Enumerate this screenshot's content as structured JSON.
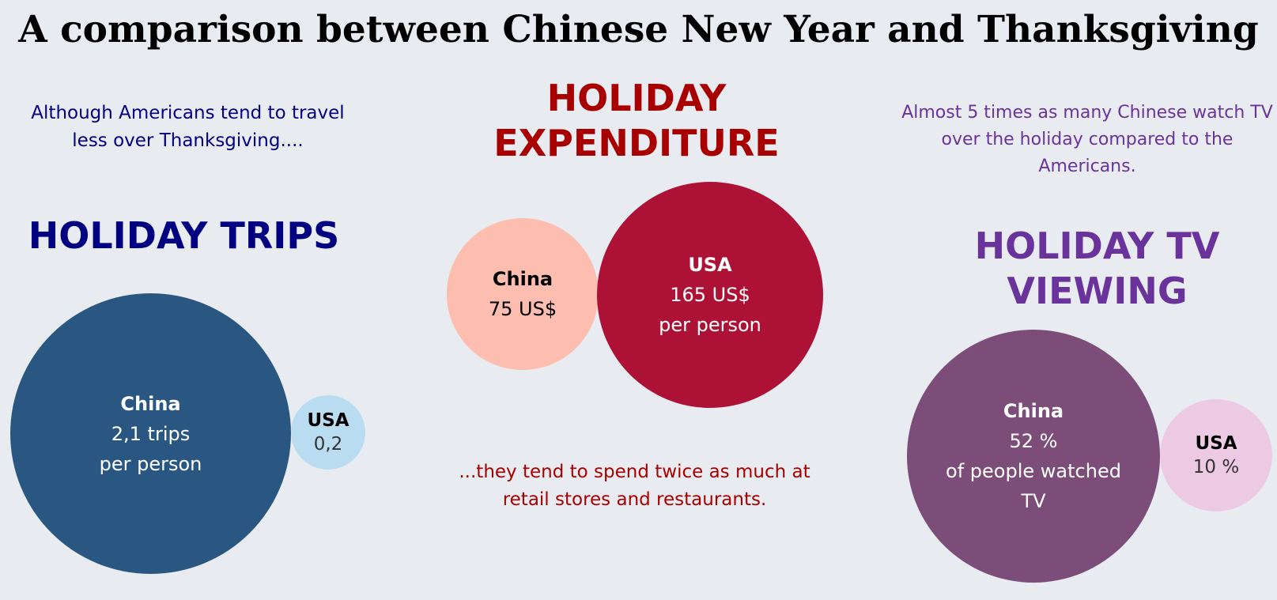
{
  "title": "A comparison between Chinese New Year and Thanksgiving",
  "notes": {
    "trips": "Although Americans tend to travel less over Thanksgiving....",
    "expenditure": "...they tend to spend twice as much at retail stores and restaurants.",
    "tv": "Almost 5 times as many Chinese watch TV over the holiday compared to the Americans."
  },
  "colors": {
    "trips_heading": "#000080",
    "trips_china": "#2a5781",
    "trips_usa": "#b9dcf1",
    "expenditure_heading": "#a80000",
    "expenditure_china": "#fdbdaf",
    "expenditure_usa": "#ad1236",
    "tv_heading": "#6a329b",
    "tv_china": "#7b4d78",
    "tv_usa": "#edcae4",
    "tv_note": "#6a329b"
  },
  "chart_data": [
    {
      "type": "bubble",
      "title": "HOLIDAY TRIPS",
      "series": [
        {
          "name": "China",
          "value": 2.1,
          "label": "2,1 trips",
          "sublabel": "per person"
        },
        {
          "name": "USA",
          "value": 0.2,
          "label": "0,2",
          "sublabel": ""
        }
      ]
    },
    {
      "type": "bubble",
      "title": "HOLIDAY EXPENDITURE",
      "series": [
        {
          "name": "China",
          "value": 75,
          "label": "75  US$",
          "sublabel": ""
        },
        {
          "name": "USA",
          "value": 165,
          "label": "165  US$",
          "sublabel": "per person"
        }
      ]
    },
    {
      "type": "bubble",
      "title": "HOLIDAY TV VIEWING",
      "series": [
        {
          "name": "China",
          "value": 52,
          "label": "52 %",
          "sublabel": "of people watched TV"
        },
        {
          "name": "USA",
          "value": 10,
          "label": "10 %",
          "sublabel": ""
        }
      ]
    }
  ]
}
